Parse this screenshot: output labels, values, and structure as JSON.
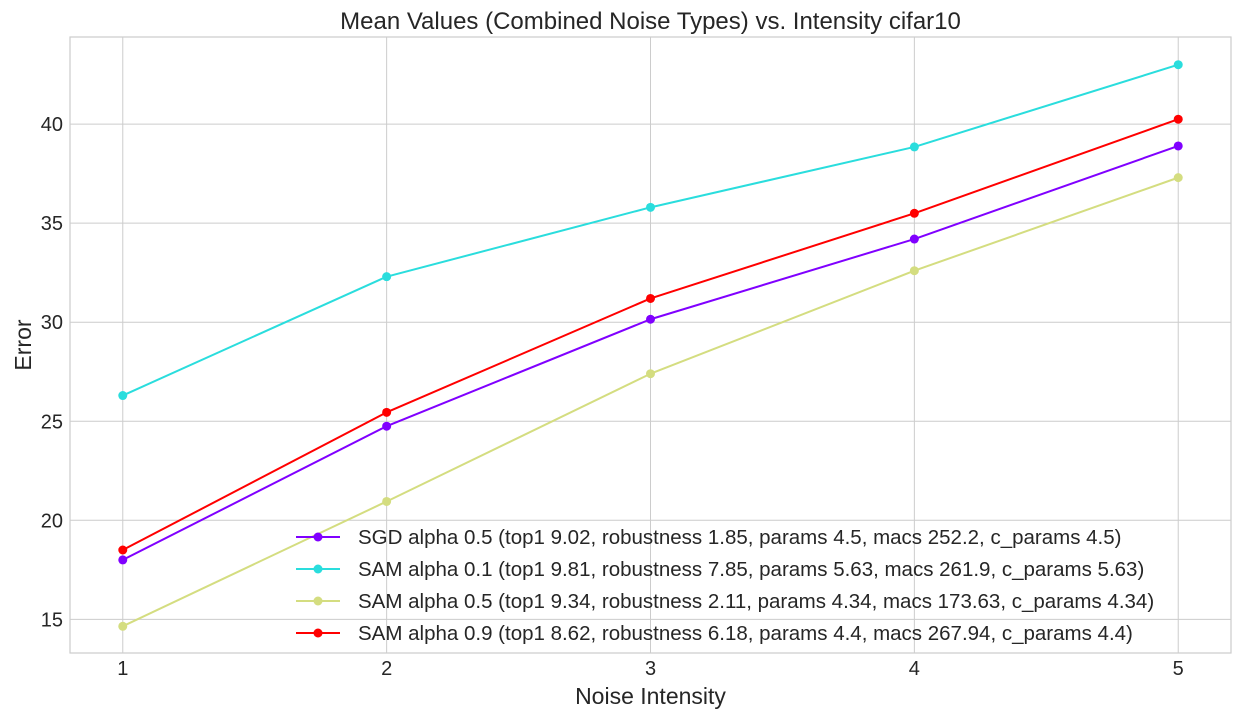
{
  "chart_data": {
    "type": "line",
    "title": "Mean Values (Combined Noise Types) vs. Intensity cifar10",
    "xlabel": "Noise Intensity",
    "ylabel": "Error",
    "x": [
      1,
      2,
      3,
      4,
      5
    ],
    "x_ticks": [
      "1",
      "2",
      "3",
      "4",
      "5"
    ],
    "y_ticks": [
      "15",
      "20",
      "25",
      "30",
      "35",
      "40"
    ],
    "xlim": [
      0.8,
      5.2
    ],
    "ylim": [
      13.3,
      44.4
    ],
    "grid": true,
    "legend_position": "lower right",
    "series": [
      {
        "name": "SGD alpha 0.5 (top1 9.02, robustness 1.85, params 4.5, macs 252.2, c_params 4.5)",
        "color": "#8000ff",
        "values": [
          18.0,
          24.75,
          30.15,
          34.2,
          38.9
        ]
      },
      {
        "name": "SAM alpha 0.1 (top1 9.81, robustness 7.85, params 5.63, macs 261.9, c_params 5.63)",
        "color": "#2adddd",
        "values": [
          26.3,
          32.3,
          35.8,
          38.85,
          43.0
        ]
      },
      {
        "name": "SAM alpha 0.5 (top1 9.34, robustness 2.11, params 4.34, macs 173.63, c_params 4.34)",
        "color": "#d4dd80",
        "values": [
          14.65,
          20.95,
          27.4,
          32.6,
          37.3
        ]
      },
      {
        "name": "SAM alpha 0.9 (top1 8.62, robustness 6.18, params 4.4, macs 267.94, c_params 4.4)",
        "color": "#ff0000",
        "values": [
          18.5,
          25.45,
          31.2,
          35.5,
          40.25
        ]
      }
    ]
  }
}
